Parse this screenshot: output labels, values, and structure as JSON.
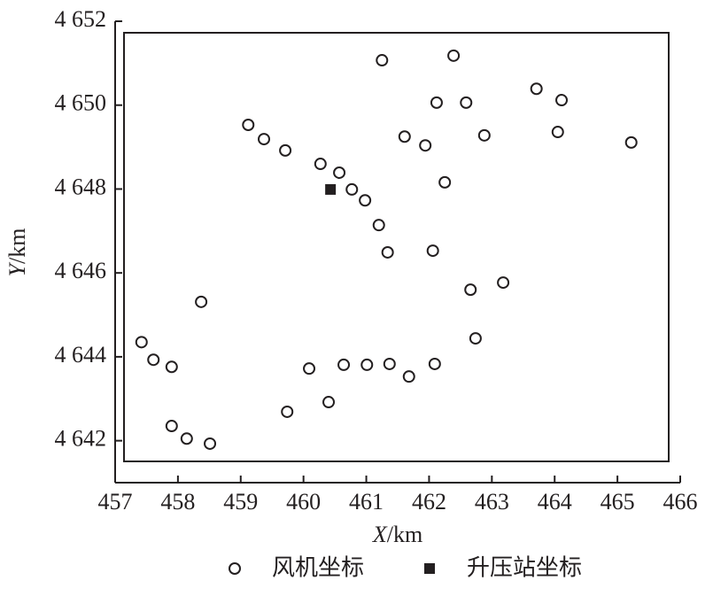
{
  "chart_data": {
    "type": "scatter",
    "xlabel": {
      "italic": "X",
      "rest": "/km"
    },
    "ylabel": {
      "italic": "Y",
      "rest": "/km"
    },
    "xlim": [
      457,
      466
    ],
    "xticks": [
      457,
      458,
      459,
      460,
      461,
      462,
      463,
      464,
      465,
      466
    ],
    "ylim": [
      4641,
      4652
    ],
    "yticks": [
      {
        "value": 4642,
        "label": "4 642"
      },
      {
        "value": 4644,
        "label": "4 644"
      },
      {
        "value": 4646,
        "label": "4 646"
      },
      {
        "value": 4648,
        "label": "4 648"
      },
      {
        "value": 4650,
        "label": "4 650"
      },
      {
        "value": 4652,
        "label": "4 652"
      }
    ],
    "series": [
      {
        "name": "风机坐标",
        "color": "#231f20",
        "marker": "circle",
        "x": [
          461.25,
          462.39,
          462.12,
          462.59,
          463.71,
          464.11,
          459.12,
          459.37,
          459.71,
          461.61,
          461.94,
          462.88,
          464.05,
          465.22,
          460.27,
          460.57,
          460.77,
          460.98,
          462.25,
          461.2,
          461.34,
          462.06,
          462.66,
          463.18,
          458.37,
          462.74,
          457.42,
          457.61,
          457.9,
          460.09,
          460.64,
          461.01,
          461.37,
          462.09,
          461.68,
          459.74,
          460.4,
          457.9,
          458.14,
          458.51
        ],
        "values": [
          4651.07,
          4651.18,
          4650.06,
          4650.06,
          4650.39,
          4650.12,
          4649.53,
          4649.19,
          4648.92,
          4649.25,
          4649.04,
          4649.28,
          4649.36,
          4649.11,
          4648.6,
          4648.39,
          4647.99,
          4647.73,
          4648.16,
          4647.14,
          4646.49,
          4646.53,
          4645.6,
          4645.77,
          4645.31,
          4644.44,
          4644.35,
          4643.93,
          4643.76,
          4643.72,
          4643.81,
          4643.81,
          4643.83,
          4643.83,
          4643.53,
          4642.69,
          4642.92,
          4642.35,
          4642.05,
          4641.93
        ]
      },
      {
        "name": "升压站坐标",
        "color": "#231f20",
        "marker": "square",
        "x": [
          460.43
        ],
        "values": [
          4647.99
        ]
      }
    ]
  }
}
